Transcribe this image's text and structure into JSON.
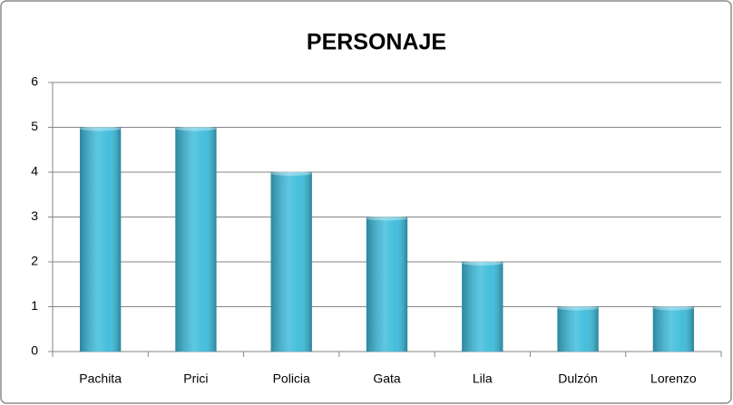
{
  "chart_data": {
    "type": "bar",
    "title": "PERSONAJE",
    "categories": [
      "Pachita",
      "Prici",
      "Policia",
      "Gata",
      "Lila",
      "Dulzón",
      "Lorenzo"
    ],
    "values": [
      5,
      5,
      4,
      3,
      2,
      1,
      1
    ],
    "color": "#3bbbdb",
    "ylim": [
      0,
      6
    ],
    "yticks": [
      0,
      1,
      2,
      3,
      4,
      5,
      6
    ],
    "grid": true
  }
}
